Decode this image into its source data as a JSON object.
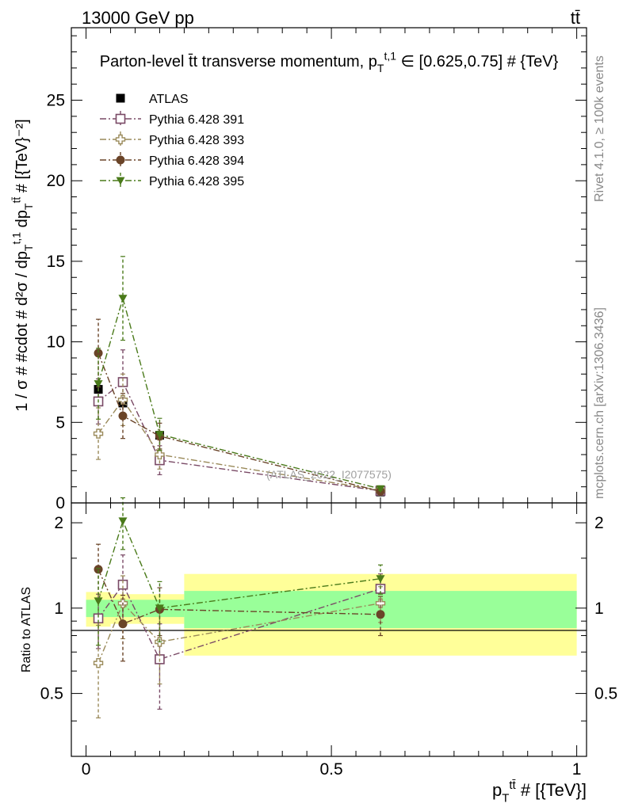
{
  "header": {
    "left": "13000 GeV pp",
    "right": "tt̄"
  },
  "side_labels": {
    "rivet": "Rivet 4.1.0, ≥ 100k events",
    "mcplots": "mcplots.cern.ch [arXiv:1306.3436]"
  },
  "chart_data": [
    {
      "panel": "main",
      "type": "scatter",
      "title": "Parton-level t̄t transverse momentum, p_{T}^{t,1} ∈ [0.625,0.75] # {TeV}",
      "ylabel": "1 / σ # #cdot # d²σ / dp_{T}^{t,1} dp_{T}^{tt̄} # [{TeV}⁻²]",
      "xlabel": "p_{T}^{tt̄} # [{TeV}]",
      "xlim": [
        -0.03,
        1.02
      ],
      "ylim": [
        0,
        29.5
      ],
      "yticks": [
        0,
        5,
        10,
        15,
        20,
        25
      ],
      "yticklabels": [
        "0",
        "5",
        "10",
        "15",
        "20",
        "25"
      ],
      "watermark": "(ATLAS_2022_I2077575)",
      "legend_position": "top-left",
      "series": [
        {
          "name": "ATLAS",
          "color": "#000000",
          "marker": "square-filled",
          "line": "none",
          "x": [
            0.025,
            0.075,
            0.15,
            0.6
          ],
          "y": [
            7.05,
            6.2,
            4.2,
            0.68
          ],
          "err": [
            0.2,
            0.2,
            0.15,
            0.05
          ]
        },
        {
          "name": "Pythia 6.428 391",
          "color": "#7a4a66",
          "marker": "square-open",
          "line": "dashdot",
          "x": [
            0.025,
            0.075,
            0.15,
            0.6
          ],
          "y": [
            6.3,
            7.5,
            2.65,
            0.75
          ],
          "err": [
            1.4,
            2.0,
            0.9,
            0.1
          ]
        },
        {
          "name": "Pythia 6.428 393",
          "color": "#9a8a5a",
          "marker": "cross-open",
          "line": "dashdot",
          "x": [
            0.025,
            0.075,
            0.15,
            0.6
          ],
          "y": [
            4.3,
            6.4,
            3.0,
            0.78
          ],
          "err": [
            1.6,
            1.6,
            0.9,
            0.1
          ]
        },
        {
          "name": "Pythia 6.428 394",
          "color": "#6a4428",
          "marker": "circle-filled",
          "line": "dashdot",
          "x": [
            0.025,
            0.075,
            0.15,
            0.6
          ],
          "y": [
            9.3,
            5.4,
            4.15,
            0.72
          ],
          "err": [
            2.1,
            1.4,
            0.8,
            0.1
          ]
        },
        {
          "name": "Pythia 6.428 395",
          "color": "#4a7a1a",
          "marker": "triangle-down-filled",
          "line": "dashdot",
          "x": [
            0.025,
            0.075,
            0.15,
            0.6
          ],
          "y": [
            7.4,
            12.7,
            4.25,
            0.88
          ],
          "err": [
            2.2,
            2.6,
            1.0,
            0.1
          ]
        }
      ]
    },
    {
      "panel": "ratio",
      "type": "scatter",
      "ylabel": "Ratio to ATLAS",
      "xlabel": "p_{T}^{tt̄} # [{TeV}]",
      "xlim": [
        -0.03,
        1.02
      ],
      "ylim": [
        0.3,
        2.35
      ],
      "yticks": [
        0.5,
        1,
        2
      ],
      "yticklabels": [
        "0.5",
        "1",
        "2"
      ],
      "xticks": [
        0,
        0.5,
        1
      ],
      "xticklabels": [
        "0",
        "0.5",
        "1"
      ],
      "bands": [
        {
          "x0": 0.0,
          "x1": 0.05,
          "stat_lo": 0.93,
          "stat_hi": 1.07,
          "sys_lo": 0.86,
          "sys_hi": 1.14
        },
        {
          "x0": 0.05,
          "x1": 0.1,
          "stat_lo": 0.93,
          "stat_hi": 1.07,
          "sys_lo": 0.88,
          "sys_hi": 1.12
        },
        {
          "x0": 0.1,
          "x1": 0.2,
          "stat_lo": 0.93,
          "stat_hi": 1.07,
          "sys_lo": 0.88,
          "sys_hi": 1.12
        },
        {
          "x0": 0.2,
          "x1": 1.0,
          "stat_lo": 0.85,
          "stat_hi": 1.15,
          "sys_lo": 0.68,
          "sys_hi": 1.32
        }
      ],
      "series": [
        {
          "name": "Pythia 6.428 391",
          "x": [
            0.025,
            0.075,
            0.15,
            0.6
          ],
          "y": [
            0.92,
            1.21,
            0.66,
            1.17
          ],
          "err": [
            0.2,
            0.33,
            0.22,
            0.15
          ]
        },
        {
          "name": "Pythia 6.428 393",
          "x": [
            0.025,
            0.075,
            0.15,
            0.6
          ],
          "y": [
            0.64,
            1.04,
            0.76,
            1.04
          ],
          "err": [
            0.23,
            0.26,
            0.22,
            0.15
          ]
        },
        {
          "name": "Pythia 6.428 394",
          "x": [
            0.025,
            0.075,
            0.15,
            0.6
          ],
          "y": [
            1.37,
            0.88,
            0.99,
            0.95
          ],
          "err": [
            0.31,
            0.23,
            0.19,
            0.15
          ]
        },
        {
          "name": "Pythia 6.428 395",
          "x": [
            0.025,
            0.075,
            0.15,
            0.6
          ],
          "y": [
            1.06,
            2.03,
            1.0,
            1.27
          ],
          "err": [
            0.32,
            0.42,
            0.24,
            0.15
          ]
        }
      ]
    }
  ]
}
